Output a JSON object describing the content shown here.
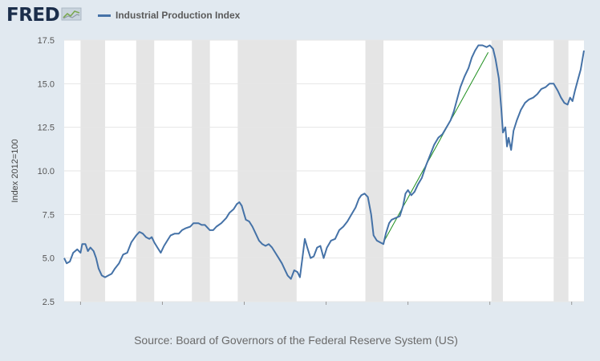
{
  "header": {
    "logo_text": "FRED",
    "logo_icon": "line-chart-icon"
  },
  "legend": {
    "label": "Industrial Production Index",
    "color": "#4572a7"
  },
  "source": "Source: Board of Governors of the Federal Reserve System (US)",
  "colors": {
    "background": "#e1e9f0",
    "plot_background": "#ffffff",
    "recession": "#e5e5e5",
    "series": "#4572a7",
    "trend": "#1e8f1e",
    "grid": "#e6e6e6"
  },
  "chart_data": {
    "type": "line",
    "title": "",
    "xlabel": "",
    "ylabel": "Index 2012=100",
    "xlim": [
      1919.0,
      1950.75
    ],
    "ylim": [
      2.5,
      17.5
    ],
    "x_ticks": [
      "1920",
      "1925",
      "1930",
      "1935",
      "1940",
      "1945",
      "1950"
    ],
    "y_ticks": [
      "2.5",
      "5.0",
      "7.5",
      "10.0",
      "12.5",
      "15.0",
      "17.5"
    ],
    "grid": "horizontal",
    "recessions": [
      [
        1920.0,
        1921.5
      ],
      [
        1923.4,
        1924.5
      ],
      [
        1926.8,
        1927.9
      ],
      [
        1929.6,
        1933.2
      ],
      [
        1937.4,
        1938.5
      ],
      [
        1945.1,
        1945.8
      ],
      [
        1948.9,
        1949.8
      ]
    ],
    "series": [
      {
        "name": "Industrial Production Index",
        "points": [
          [
            1919.0,
            5.0
          ],
          [
            1919.15,
            4.7
          ],
          [
            1919.35,
            4.8
          ],
          [
            1919.55,
            5.3
          ],
          [
            1919.8,
            5.5
          ],
          [
            1920.0,
            5.3
          ],
          [
            1920.1,
            5.8
          ],
          [
            1920.3,
            5.8
          ],
          [
            1920.45,
            5.4
          ],
          [
            1920.6,
            5.6
          ],
          [
            1920.8,
            5.4
          ],
          [
            1920.95,
            5.0
          ],
          [
            1921.1,
            4.4
          ],
          [
            1921.3,
            4.0
          ],
          [
            1921.5,
            3.9
          ],
          [
            1921.7,
            4.0
          ],
          [
            1921.9,
            4.1
          ],
          [
            1922.1,
            4.4
          ],
          [
            1922.35,
            4.7
          ],
          [
            1922.6,
            5.2
          ],
          [
            1922.85,
            5.3
          ],
          [
            1923.1,
            5.9
          ],
          [
            1923.4,
            6.3
          ],
          [
            1923.6,
            6.5
          ],
          [
            1923.8,
            6.4
          ],
          [
            1924.0,
            6.2
          ],
          [
            1924.2,
            6.1
          ],
          [
            1924.35,
            6.2
          ],
          [
            1924.5,
            5.9
          ],
          [
            1924.7,
            5.6
          ],
          [
            1924.9,
            5.3
          ],
          [
            1925.1,
            5.7
          ],
          [
            1925.3,
            6.0
          ],
          [
            1925.5,
            6.3
          ],
          [
            1925.75,
            6.4
          ],
          [
            1926.0,
            6.4
          ],
          [
            1926.2,
            6.6
          ],
          [
            1926.4,
            6.7
          ],
          [
            1926.7,
            6.8
          ],
          [
            1926.9,
            7.0
          ],
          [
            1927.2,
            7.0
          ],
          [
            1927.4,
            6.9
          ],
          [
            1927.6,
            6.9
          ],
          [
            1927.9,
            6.6
          ],
          [
            1928.1,
            6.6
          ],
          [
            1928.3,
            6.8
          ],
          [
            1928.6,
            7.0
          ],
          [
            1928.9,
            7.3
          ],
          [
            1929.1,
            7.6
          ],
          [
            1929.35,
            7.8
          ],
          [
            1929.55,
            8.1
          ],
          [
            1929.7,
            8.2
          ],
          [
            1929.85,
            8.0
          ],
          [
            1930.0,
            7.5
          ],
          [
            1930.1,
            7.2
          ],
          [
            1930.3,
            7.1
          ],
          [
            1930.5,
            6.8
          ],
          [
            1930.7,
            6.4
          ],
          [
            1930.9,
            6.0
          ],
          [
            1931.1,
            5.8
          ],
          [
            1931.3,
            5.7
          ],
          [
            1931.5,
            5.8
          ],
          [
            1931.7,
            5.6
          ],
          [
            1931.9,
            5.3
          ],
          [
            1932.1,
            5.0
          ],
          [
            1932.3,
            4.7
          ],
          [
            1932.5,
            4.3
          ],
          [
            1932.65,
            4.0
          ],
          [
            1932.85,
            3.8
          ],
          [
            1933.05,
            4.3
          ],
          [
            1933.25,
            4.2
          ],
          [
            1933.4,
            3.9
          ],
          [
            1933.55,
            5.0
          ],
          [
            1933.7,
            6.1
          ],
          [
            1933.85,
            5.6
          ],
          [
            1934.05,
            5.0
          ],
          [
            1934.25,
            5.1
          ],
          [
            1934.45,
            5.6
          ],
          [
            1934.65,
            5.7
          ],
          [
            1934.85,
            5.0
          ],
          [
            1935.05,
            5.6
          ],
          [
            1935.3,
            6.0
          ],
          [
            1935.55,
            6.1
          ],
          [
            1935.8,
            6.6
          ],
          [
            1936.05,
            6.8
          ],
          [
            1936.3,
            7.1
          ],
          [
            1936.55,
            7.5
          ],
          [
            1936.8,
            7.9
          ],
          [
            1937.0,
            8.4
          ],
          [
            1937.15,
            8.6
          ],
          [
            1937.35,
            8.7
          ],
          [
            1937.55,
            8.5
          ],
          [
            1937.75,
            7.5
          ],
          [
            1937.9,
            6.3
          ],
          [
            1938.1,
            6.0
          ],
          [
            1938.3,
            5.9
          ],
          [
            1938.5,
            5.8
          ],
          [
            1938.65,
            6.4
          ],
          [
            1938.85,
            7.0
          ],
          [
            1939.0,
            7.2
          ],
          [
            1939.25,
            7.3
          ],
          [
            1939.5,
            7.4
          ],
          [
            1939.7,
            8.0
          ],
          [
            1939.85,
            8.7
          ],
          [
            1940.0,
            8.9
          ],
          [
            1940.2,
            8.6
          ],
          [
            1940.4,
            8.8
          ],
          [
            1940.6,
            9.2
          ],
          [
            1940.85,
            9.6
          ],
          [
            1941.1,
            10.3
          ],
          [
            1941.35,
            10.9
          ],
          [
            1941.6,
            11.5
          ],
          [
            1941.85,
            11.9
          ],
          [
            1942.1,
            12.1
          ],
          [
            1942.35,
            12.5
          ],
          [
            1942.6,
            12.9
          ],
          [
            1942.8,
            13.4
          ],
          [
            1943.0,
            14.1
          ],
          [
            1943.2,
            14.8
          ],
          [
            1943.45,
            15.4
          ],
          [
            1943.7,
            15.9
          ],
          [
            1943.9,
            16.5
          ],
          [
            1944.1,
            16.9
          ],
          [
            1944.3,
            17.2
          ],
          [
            1944.55,
            17.2
          ],
          [
            1944.8,
            17.1
          ],
          [
            1945.0,
            17.2
          ],
          [
            1945.2,
            17.0
          ],
          [
            1945.35,
            16.4
          ],
          [
            1945.55,
            15.3
          ],
          [
            1945.7,
            13.6
          ],
          [
            1945.8,
            12.2
          ],
          [
            1945.95,
            12.5
          ],
          [
            1946.05,
            11.4
          ],
          [
            1946.15,
            11.9
          ],
          [
            1946.3,
            11.2
          ],
          [
            1946.45,
            12.3
          ],
          [
            1946.65,
            12.9
          ],
          [
            1946.9,
            13.5
          ],
          [
            1947.15,
            13.9
          ],
          [
            1947.4,
            14.1
          ],
          [
            1947.65,
            14.2
          ],
          [
            1947.9,
            14.4
          ],
          [
            1948.15,
            14.7
          ],
          [
            1948.4,
            14.8
          ],
          [
            1948.65,
            15.0
          ],
          [
            1948.9,
            15.0
          ],
          [
            1949.15,
            14.6
          ],
          [
            1949.35,
            14.2
          ],
          [
            1949.55,
            13.9
          ],
          [
            1949.75,
            13.8
          ],
          [
            1949.9,
            14.2
          ],
          [
            1950.05,
            14.0
          ],
          [
            1950.2,
            14.6
          ],
          [
            1950.4,
            15.3
          ],
          [
            1950.55,
            15.8
          ],
          [
            1950.75,
            16.9
          ]
        ]
      }
    ],
    "trendline": [
      [
        1938.5,
        5.9
      ],
      [
        1944.9,
        16.8
      ]
    ]
  }
}
